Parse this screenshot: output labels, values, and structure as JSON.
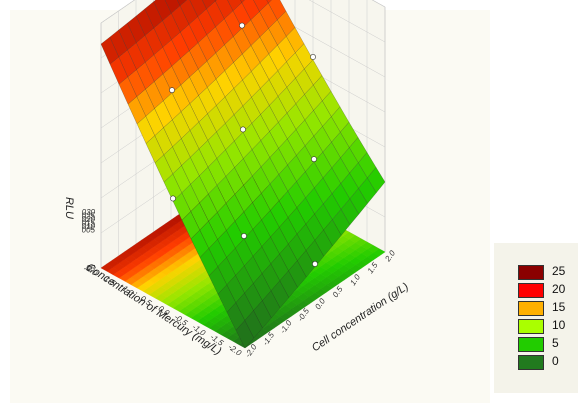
{
  "chart_data": {
    "type": "surface3d",
    "x_axis": {
      "label": "Concentration of Mercury (mg/L)",
      "ticks": [
        "2.0",
        "1.5",
        "1.0",
        "0.5",
        "0.0",
        "-0.5",
        "-1.0",
        "-1.5",
        "-2.0"
      ],
      "range": [
        -2.0,
        2.0
      ]
    },
    "y_axis": {
      "label": "Cell concentration (g/L)",
      "ticks": [
        "-2.0",
        "-1.5",
        "-1.0",
        "-0.5",
        "0.0",
        "0.5",
        "1.0",
        "1.5",
        "2.0"
      ],
      "range": [
        -2.0,
        2.0
      ]
    },
    "z_axis": {
      "label": "RLU",
      "ticks": [
        "030",
        "025",
        "020",
        "015",
        "010",
        "005",
        "-05"
      ],
      "range": [
        -0.05,
        0.3
      ]
    },
    "corner_values": {
      "mercury_high_cells_low": 0.27,
      "mercury_high_cells_high": 0.3,
      "mercury_low_cells_high": 0.05,
      "mercury_low_cells_low": -0.05
    },
    "design_points": [
      {
        "mercury": 2.0,
        "cells": 0.0
      },
      {
        "mercury": 1.0,
        "cells": -1.0
      },
      {
        "mercury": 1.0,
        "cells": 1.0
      },
      {
        "mercury": 0.0,
        "cells": 2.0
      },
      {
        "mercury": 0.0,
        "cells": 0.0
      },
      {
        "mercury": -1.0,
        "cells": -1.0
      },
      {
        "mercury": 0.0,
        "cells": -2.0
      },
      {
        "mercury": -1.0,
        "cells": 1.0
      },
      {
        "mercury": -2.0,
        "cells": 0.0
      }
    ],
    "legend": {
      "placement": "bottom-right",
      "items": [
        {
          "label": "25",
          "color": "#8b0000"
        },
        {
          "label": "20",
          "color": "#ff0000"
        },
        {
          "label": "15",
          "color": "#ffb000"
        },
        {
          "label": "10",
          "color": "#aaff00"
        },
        {
          "label": "5",
          "color": "#22cc00"
        },
        {
          "label": "0",
          "color": "#217a1e"
        }
      ]
    },
    "grid": true
  }
}
